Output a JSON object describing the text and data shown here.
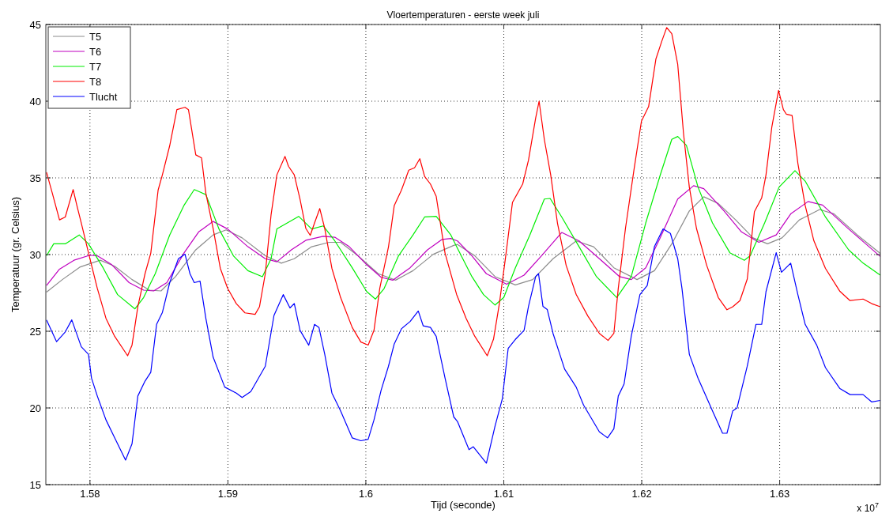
{
  "chart_data": {
    "type": "line",
    "title": "Vloertemperaturen - eerste week juli",
    "xlabel": "Tijd (seconde)",
    "ylabel": "Temperatuur (gr. Celsius)",
    "annotations": [
      "x 10$^{7}$"
    ],
    "xlim": [
      1.5768,
      1.6373
    ],
    "xticks": [
      1.58,
      1.59,
      1.6,
      1.61,
      1.62,
      1.63
    ],
    "ylim": [
      15,
      45
    ],
    "yticks": [
      15,
      20,
      25,
      30,
      35,
      40,
      45
    ],
    "grid": true,
    "legend": "top left",
    "series": [
      {
        "name": "T5",
        "color": "#8c8c8c",
        "x": [
          1.57685,
          1.578,
          1.57926,
          1.58074,
          1.58179,
          1.58305,
          1.58431,
          1.58515,
          1.5862,
          1.58767,
          1.58893,
          1.58987,
          1.59103,
          1.59271,
          1.59387,
          1.59481,
          1.59607,
          1.59733,
          1.59817,
          1.59943,
          1.6009,
          1.60216,
          1.60342,
          1.60489,
          1.60637,
          1.60664,
          1.6079,
          1.60937,
          1.61084,
          1.6121,
          1.61357,
          1.61525,
          1.61651,
          1.61798,
          1.61966,
          1.62092,
          1.62218,
          1.62345,
          1.6245,
          1.62555,
          1.62681,
          1.62807,
          1.62912,
          1.63017,
          1.63143,
          1.6329,
          1.63395,
          1.63563,
          1.63729
        ],
        "values": [
          27.55,
          28.37,
          29.18,
          29.63,
          29.24,
          28.37,
          27.68,
          27.63,
          28.56,
          30.31,
          31.28,
          31.61,
          31.09,
          29.92,
          29.44,
          29.73,
          30.51,
          30.8,
          30.8,
          29.92,
          28.75,
          28.33,
          28.95,
          30.02,
          30.6,
          30.66,
          29.92,
          28.56,
          28.02,
          28.37,
          29.73,
          30.89,
          30.51,
          29.14,
          28.37,
          28.95,
          30.7,
          32.84,
          33.77,
          33.33,
          32.26,
          31.09,
          30.7,
          31.09,
          32.26,
          32.94,
          32.65,
          31.28,
          30.08
        ]
      },
      {
        "name": "T6",
        "color": "#c000c0",
        "x": [
          1.57685,
          1.57779,
          1.57884,
          1.58,
          1.58053,
          1.58158,
          1.58284,
          1.58389,
          1.58462,
          1.58557,
          1.58683,
          1.58788,
          1.58893,
          1.58998,
          1.59145,
          1.59271,
          1.59355,
          1.5946,
          1.59565,
          1.59691,
          1.59775,
          1.5988,
          1.60006,
          1.60111,
          1.60195,
          1.60321,
          1.60447,
          1.60553,
          1.60616,
          1.60664,
          1.60769,
          1.60874,
          1.61021,
          1.61147,
          1.61273,
          1.6142,
          1.61546,
          1.61693,
          1.6184,
          1.61924,
          1.62029,
          1.62134,
          1.62261,
          1.62376,
          1.6245,
          1.62597,
          1.62723,
          1.62849,
          1.62975,
          1.6308,
          1.63206,
          1.63311,
          1.635,
          1.63729
        ],
        "values": [
          27.98,
          29.05,
          29.63,
          29.96,
          29.92,
          29.34,
          28.17,
          27.68,
          27.63,
          28.17,
          30.12,
          31.48,
          32.16,
          31.67,
          30.51,
          29.73,
          29.53,
          30.31,
          30.93,
          31.19,
          31.13,
          30.51,
          29.34,
          28.52,
          28.33,
          29.14,
          30.31,
          30.99,
          31.05,
          30.89,
          29.92,
          28.75,
          28.07,
          28.66,
          29.92,
          31.44,
          30.89,
          29.73,
          28.56,
          28.37,
          29.14,
          31.09,
          33.62,
          34.49,
          34.3,
          32.84,
          31.48,
          30.8,
          31.28,
          32.65,
          33.46,
          33.23,
          31.67,
          29.88
        ]
      },
      {
        "name": "T7",
        "color": "#00ee00",
        "x": [
          1.57685,
          1.57737,
          1.57821,
          1.57922,
          1.57989,
          1.58095,
          1.582,
          1.58326,
          1.58389,
          1.58473,
          1.58578,
          1.58683,
          1.58756,
          1.5884,
          1.58935,
          1.5904,
          1.59145,
          1.5925,
          1.59313,
          1.59355,
          1.59513,
          1.59607,
          1.59691,
          1.59775,
          1.59901,
          1.60006,
          1.60069,
          1.60132,
          1.60237,
          1.60342,
          1.60426,
          1.6051,
          1.60616,
          1.60664,
          1.60769,
          1.60853,
          1.60937,
          1.61,
          1.61084,
          1.61189,
          1.61294,
          1.61336,
          1.6142,
          1.61546,
          1.61672,
          1.61819,
          1.61924,
          1.62029,
          1.62134,
          1.62218,
          1.62261,
          1.62324,
          1.62408,
          1.62513,
          1.62639,
          1.62744,
          1.62786,
          1.62891,
          1.62996,
          1.63111,
          1.63185,
          1.63332,
          1.635,
          1.63605,
          1.63729
        ],
        "values": [
          29.92,
          30.7,
          30.7,
          31.28,
          30.7,
          29.14,
          27.39,
          26.46,
          27.2,
          28.75,
          31.28,
          33.23,
          34.24,
          33.91,
          31.67,
          29.92,
          28.95,
          28.56,
          29.73,
          31.67,
          32.49,
          31.67,
          31.87,
          30.89,
          29.14,
          27.59,
          27.1,
          27.78,
          29.92,
          31.28,
          32.45,
          32.49,
          31.28,
          30.41,
          28.56,
          27.39,
          26.71,
          27.2,
          29.14,
          31.28,
          33.62,
          33.66,
          32.45,
          30.51,
          28.56,
          27.2,
          28.56,
          32.06,
          35.18,
          37.51,
          37.7,
          37.12,
          34.4,
          32.06,
          30.12,
          29.63,
          29.92,
          32.06,
          34.4,
          35.47,
          34.79,
          32.45,
          30.31,
          29.44,
          28.66
        ]
      },
      {
        "name": "T8",
        "color": "#ff0000",
        "x": [
          1.57685,
          1.57727,
          1.57779,
          1.57821,
          1.57878,
          1.57905,
          1.57937,
          1.57989,
          1.58053,
          1.58116,
          1.58179,
          1.58273,
          1.58305,
          1.58347,
          1.58399,
          1.58441,
          1.58494,
          1.58525,
          1.58578,
          1.5863,
          1.58689,
          1.58714,
          1.58767,
          1.58809,
          1.5884,
          1.58893,
          1.58945,
          1.58998,
          1.59061,
          1.59124,
          1.59197,
          1.59229,
          1.59271,
          1.59313,
          1.59355,
          1.59414,
          1.59439,
          1.59481,
          1.59523,
          1.59565,
          1.59597,
          1.59628,
          1.59666,
          1.59702,
          1.59754,
          1.59817,
          1.59901,
          1.59964,
          1.60017,
          1.60059,
          1.60101,
          1.60164,
          1.60206,
          1.60258,
          1.60311,
          1.60353,
          1.60391,
          1.60426,
          1.60468,
          1.6051,
          1.60574,
          1.60658,
          1.60727,
          1.6079,
          1.6088,
          1.60926,
          1.60968,
          1.61011,
          1.61063,
          1.61137,
          1.61179,
          1.61231,
          1.61256,
          1.61294,
          1.6134,
          1.61389,
          1.61452,
          1.61525,
          1.61609,
          1.61693,
          1.61756,
          1.61798,
          1.6183,
          1.61882,
          1.61945,
          1.61998,
          1.6205,
          1.62103,
          1.62145,
          1.62181,
          1.62218,
          1.62261,
          1.62303,
          1.62345,
          1.62397,
          1.62471,
          1.62555,
          1.62618,
          1.6266,
          1.62712,
          1.62765,
          1.62817,
          1.6287,
          1.62901,
          1.62943,
          1.62992,
          1.63027,
          1.63048,
          1.6309,
          1.63132,
          1.63185,
          1.63248,
          1.63332,
          1.63437,
          1.6351,
          1.63605,
          1.63668,
          1.63729
        ],
        "values": [
          35.37,
          34.0,
          32.26,
          32.45,
          34.24,
          33.2,
          32.06,
          30.12,
          27.8,
          25.84,
          24.67,
          23.4,
          24.1,
          26.6,
          28.75,
          30.1,
          34.2,
          35.2,
          37.1,
          39.45,
          39.6,
          39.45,
          36.5,
          36.3,
          34.0,
          31.7,
          29.1,
          27.8,
          26.8,
          26.2,
          26.1,
          26.6,
          28.75,
          32.6,
          35.2,
          36.4,
          35.76,
          35.2,
          33.6,
          31.7,
          31.25,
          32.06,
          33.0,
          31.7,
          29.1,
          27.2,
          25.25,
          24.3,
          24.1,
          25.06,
          27.8,
          30.5,
          33.2,
          34.2,
          35.5,
          35.66,
          36.25,
          35.1,
          34.6,
          33.8,
          30.1,
          27.4,
          25.84,
          24.67,
          23.4,
          24.5,
          26.8,
          29.7,
          33.4,
          34.6,
          36.15,
          38.9,
          40.0,
          37.5,
          35.2,
          32.06,
          29.3,
          27.4,
          26.0,
          24.86,
          24.4,
          24.86,
          27.8,
          31.7,
          35.6,
          38.7,
          39.65,
          42.76,
          43.9,
          44.8,
          44.4,
          42.4,
          37.9,
          34.4,
          31.7,
          29.3,
          27.2,
          26.4,
          26.6,
          27.0,
          28.4,
          32.8,
          33.7,
          35.2,
          38.3,
          40.7,
          39.45,
          39.16,
          39.07,
          35.95,
          33.2,
          30.9,
          29.1,
          27.6,
          27.0,
          27.1,
          26.8,
          26.6
        ]
      },
      {
        "name": "Tlucht",
        "color": "#0000ff",
        "x": [
          1.57685,
          1.57758,
          1.57821,
          1.57868,
          1.57937,
          1.57989,
          1.58011,
          1.58053,
          1.58116,
          1.58179,
          1.58258,
          1.58305,
          1.58347,
          1.58399,
          1.58441,
          1.58483,
          1.58525,
          1.58578,
          1.58641,
          1.58689,
          1.58725,
          1.58756,
          1.58798,
          1.5884,
          1.58893,
          1.58977,
          1.59061,
          1.59103,
          1.59166,
          1.59271,
          1.59334,
          1.59401,
          1.5945,
          1.59481,
          1.59523,
          1.59586,
          1.59628,
          1.5966,
          1.59702,
          1.59754,
          1.59817,
          1.59901,
          1.59964,
          1.60017,
          1.60059,
          1.60111,
          1.60164,
          1.60206,
          1.60258,
          1.60321,
          1.6038,
          1.60416,
          1.60468,
          1.6051,
          1.60574,
          1.60637,
          1.60664,
          1.60748,
          1.60779,
          1.60874,
          1.60937,
          1.60989,
          1.61032,
          1.61084,
          1.61147,
          1.61179,
          1.61231,
          1.61252,
          1.61284,
          1.61315,
          1.61357,
          1.61441,
          1.61525,
          1.61578,
          1.61693,
          1.61752,
          1.61798,
          1.6183,
          1.61872,
          1.61924,
          1.61987,
          1.6204,
          1.62092,
          1.62155,
          1.62208,
          1.62261,
          1.62292,
          1.62345,
          1.62408,
          1.62513,
          1.62586,
          1.62618,
          1.6266,
          1.62691,
          1.62765,
          1.62828,
          1.6287,
          1.62901,
          1.62975,
          1.63013,
          1.6308,
          1.63132,
          1.63185,
          1.63269,
          1.63332,
          1.63437,
          1.63511,
          1.63605,
          1.63668,
          1.63729
        ],
        "values": [
          25.74,
          24.32,
          24.96,
          25.74,
          23.99,
          23.5,
          21.95,
          20.78,
          19.22,
          18.05,
          16.6,
          17.67,
          20.78,
          21.75,
          22.33,
          25.45,
          26.23,
          28.17,
          29.73,
          30.02,
          28.75,
          28.17,
          28.27,
          25.84,
          23.31,
          21.36,
          20.97,
          20.68,
          21.07,
          22.72,
          26.03,
          27.39,
          26.52,
          26.81,
          25.06,
          24.09,
          25.45,
          25.25,
          23.5,
          20.97,
          19.81,
          18.05,
          17.86,
          17.96,
          19.22,
          21.17,
          22.72,
          24.18,
          25.16,
          25.64,
          26.32,
          25.35,
          25.25,
          24.67,
          21.95,
          19.42,
          19.12,
          17.28,
          17.47,
          16.4,
          18.83,
          20.58,
          23.89,
          24.47,
          25.06,
          26.62,
          28.56,
          28.75,
          26.62,
          26.42,
          24.86,
          22.53,
          21.36,
          20.19,
          18.44,
          18.05,
          18.64,
          20.78,
          21.56,
          24.67,
          27.39,
          27.98,
          30.51,
          31.67,
          31.38,
          29.73,
          27.78,
          23.5,
          21.95,
          19.81,
          18.35,
          18.35,
          19.81,
          20.0,
          22.72,
          25.45,
          25.45,
          27.59,
          30.12,
          28.85,
          29.44,
          27.39,
          25.45,
          24.09,
          22.63,
          21.26,
          20.87,
          20.87,
          20.39,
          20.49
        ]
      }
    ]
  }
}
